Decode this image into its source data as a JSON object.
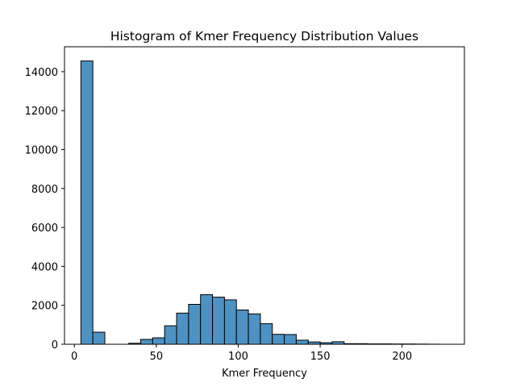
{
  "chart_data": {
    "type": "bar",
    "title": "Histogram of Kmer Frequency Distribution Values",
    "xlabel": "Kmer Frequency",
    "ylabel": "",
    "xlim": [
      -6,
      238
    ],
    "ylim": [
      0,
      15280
    ],
    "xticks": [
      0,
      50,
      100,
      150,
      200
    ],
    "yticks": [
      0,
      2000,
      4000,
      6000,
      8000,
      10000,
      12000,
      14000
    ],
    "bin_edges": [
      4,
      11.3,
      18.6,
      25.9,
      33.2,
      40.5,
      47.8,
      55.1,
      62.4,
      69.7,
      77,
      84.3,
      91.6,
      98.9,
      106.2,
      113.5,
      120.8,
      128.1,
      135.4,
      142.7,
      150,
      157.3,
      164.6,
      171.9,
      179.2,
      186.5,
      193.8,
      201.1,
      208.4,
      215.7,
      223
    ],
    "values": [
      14550,
      620,
      0,
      0,
      50,
      250,
      330,
      950,
      1600,
      2050,
      2550,
      2420,
      2280,
      1760,
      1560,
      1060,
      510,
      500,
      210,
      120,
      80,
      130,
      30,
      30,
      20,
      20,
      15,
      15,
      10,
      5
    ],
    "bar_color": "#4e92c3",
    "edge_color": "#000000",
    "grid": false,
    "legend": "none"
  }
}
